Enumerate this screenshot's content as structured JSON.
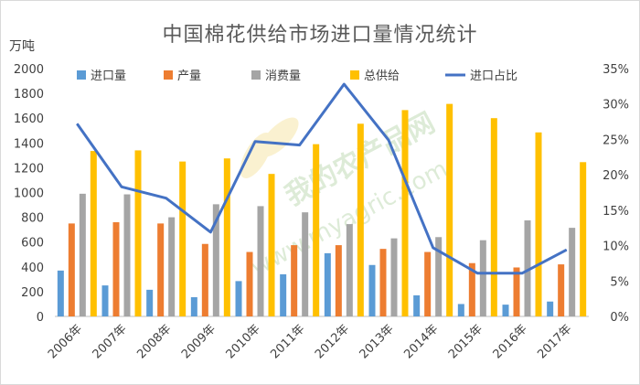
{
  "chart_data": {
    "type": "bar",
    "title": "中国棉花供给市场进口量情况统计",
    "unit_left": "万吨",
    "categories": [
      "2006年",
      "2007年",
      "2008年",
      "2009年",
      "2010年",
      "2011年",
      "2012年",
      "2013年",
      "2014年",
      "2015年",
      "2016年",
      "2017年"
    ],
    "series": [
      {
        "name": "进口量",
        "type": "bar",
        "axis": "left",
        "color": "#5b9bd5",
        "values": [
          370,
          250,
          215,
          155,
          285,
          340,
          510,
          415,
          170,
          100,
          95,
          120
        ]
      },
      {
        "name": "产量",
        "type": "bar",
        "axis": "left",
        "color": "#ed7d31",
        "values": [
          750,
          760,
          750,
          585,
          520,
          575,
          575,
          545,
          520,
          430,
          395,
          420
        ]
      },
      {
        "name": "消费量",
        "type": "bar",
        "axis": "left",
        "color": "#a5a5a5",
        "values": [
          990,
          985,
          800,
          905,
          890,
          840,
          745,
          630,
          640,
          615,
          775,
          715
        ]
      },
      {
        "name": "总供给",
        "type": "bar",
        "axis": "left",
        "color": "#ffc000",
        "values": [
          1335,
          1340,
          1250,
          1275,
          1150,
          1390,
          1555,
          1665,
          1715,
          1600,
          1485,
          1245
        ]
      },
      {
        "name": "进口占比",
        "type": "line",
        "axis": "right",
        "color": "#4472c4",
        "values": [
          27.2,
          18.3,
          16.7,
          11.9,
          24.7,
          24.2,
          32.8,
          24.9,
          9.7,
          6.1,
          6.1,
          9.4
        ]
      }
    ],
    "y_left": {
      "min": 0,
      "max": 2000,
      "step": 200,
      "ticks": [
        "0",
        "200",
        "400",
        "600",
        "800",
        "1000",
        "1200",
        "1400",
        "1600",
        "1800",
        "2000"
      ]
    },
    "y_right": {
      "min": 0,
      "max": 35,
      "step": 5,
      "ticks": [
        "0%",
        "5%",
        "10%",
        "15%",
        "20%",
        "25%",
        "30%",
        "35%"
      ]
    },
    "grid": false,
    "legend_position": "top"
  },
  "watermark": {
    "text_cn": "我的农产品网",
    "text_url": "www.myagric.com"
  }
}
